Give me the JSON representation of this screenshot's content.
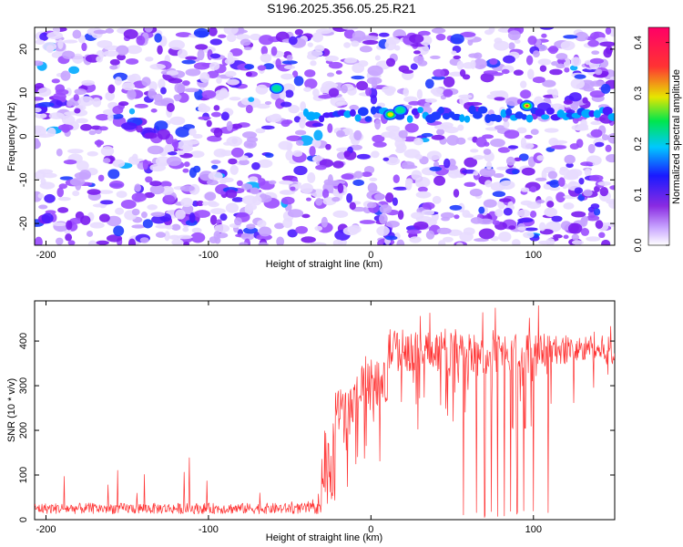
{
  "title": "S196.2025.356.05.25.R21",
  "chart_data": [
    {
      "type": "heatmap",
      "name": "spectrogram",
      "xlabel": "Height of straight line (km)",
      "ylabel": "Frequency (Hz)",
      "xlim": [
        -207,
        150
      ],
      "ylim": [
        -25,
        25
      ],
      "xticks": [
        -200,
        -100,
        0,
        100
      ],
      "yticks": [
        -20,
        -10,
        0,
        10,
        20
      ],
      "colorbar": {
        "label": "Normalized spectral amplitude",
        "range": [
          0.0,
          0.43
        ],
        "ticks": [
          0.0,
          0.1,
          0.2,
          0.3,
          0.4
        ],
        "colors": [
          "#ffffff",
          "#9933ff",
          "#1a1aff",
          "#00b3ff",
          "#00e64d",
          "#e6e600",
          "#ff3333",
          "#ff0066"
        ]
      },
      "carrier_line": {
        "frequency_hz": 5,
        "x_range": [
          -40,
          150
        ]
      },
      "peaks": [
        {
          "x": 12,
          "y": 5,
          "amplitude": 0.3
        },
        {
          "x": 96,
          "y": 7,
          "amplitude": 0.42
        },
        {
          "x": 18,
          "y": 6,
          "amplitude": 0.2
        },
        {
          "x": -58,
          "y": 11,
          "amplitude": 0.15
        }
      ]
    },
    {
      "type": "line",
      "name": "snr",
      "color": "#ff3333",
      "xlabel": "Height of straight line (km)",
      "ylabel": "SNR (10 * v/v)",
      "xlim": [
        -207,
        150
      ],
      "ylim": [
        0,
        490
      ],
      "xticks": [
        -200,
        -100,
        0,
        100
      ],
      "yticks": [
        0,
        100,
        200,
        300,
        400
      ],
      "segments": [
        {
          "x": [
            -207,
            -30
          ],
          "level": 25,
          "noise": 15,
          "spike_max": 140
        },
        {
          "x": [
            -22,
            -10
          ],
          "level": 250,
          "noise": 60,
          "spike_max": 330
        },
        {
          "x": [
            -10,
            10
          ],
          "level": 300,
          "noise": 70,
          "spike_max": 380
        },
        {
          "x": [
            10,
            55
          ],
          "level": 380,
          "noise": 60,
          "spike_max": 480
        },
        {
          "x": [
            55,
            110
          ],
          "level": 370,
          "noise": 60,
          "spike_max": 490
        },
        {
          "x": [
            110,
            150
          ],
          "level": 380,
          "noise": 40,
          "spike_max": 465
        }
      ],
      "dropouts_x": [
        57,
        65,
        70,
        74,
        78,
        82,
        86,
        90,
        94,
        100,
        109
      ]
    }
  ]
}
